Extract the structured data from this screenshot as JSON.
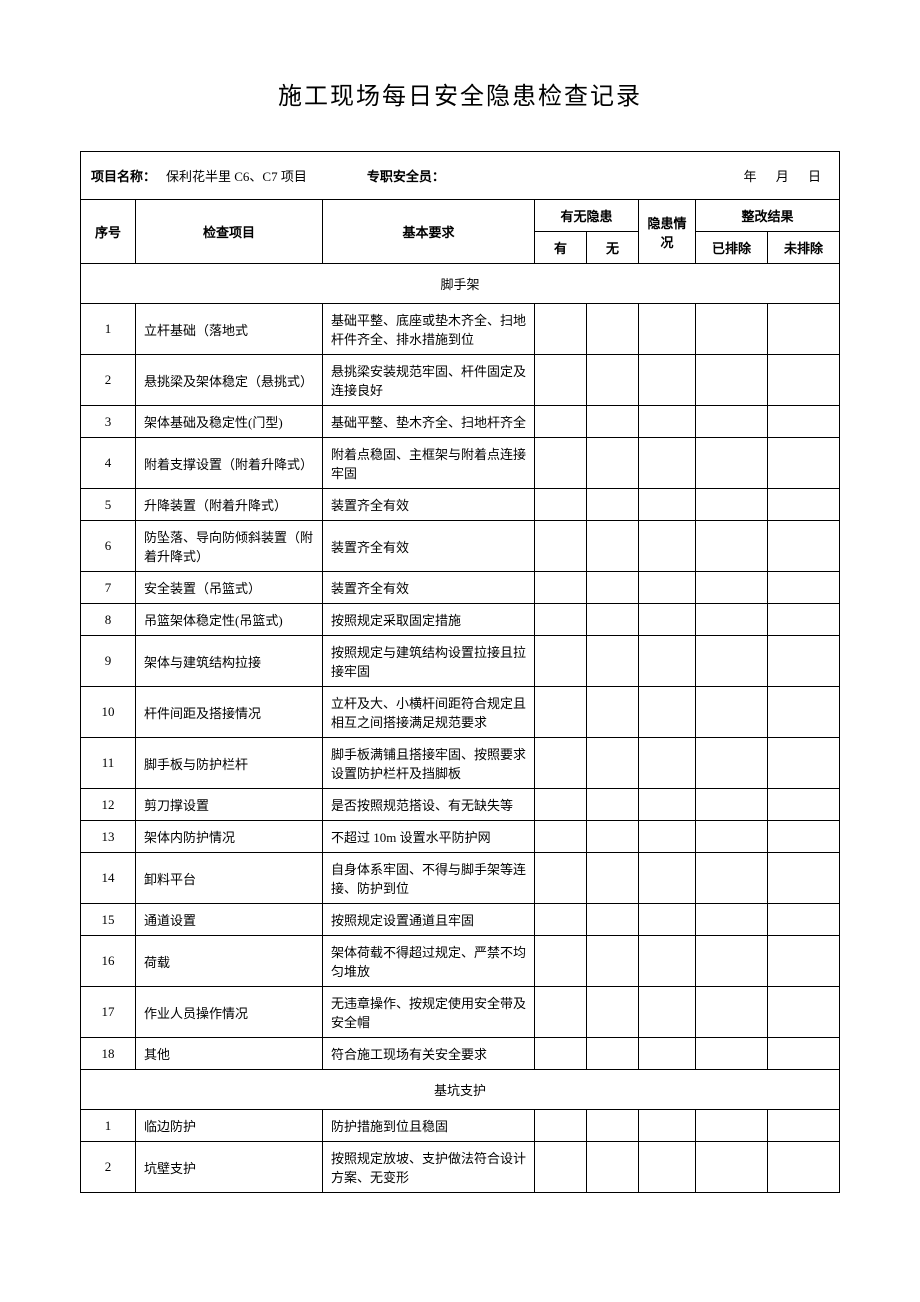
{
  "title": "施工现场每日安全隐患检查记录",
  "header": {
    "project_label": "项目名称：",
    "project_value": "保利花半里 C6、C7 项目",
    "safety_officer_label": "专职安全员：",
    "date_text": "年 月 日"
  },
  "columns": {
    "seq": "序号",
    "check_item": "检查项目",
    "basic_req": "基本要求",
    "hazard_presence": "有无隐患",
    "yes": "有",
    "no": "无",
    "status": "隐患情况",
    "result": "整改结果",
    "done": "已排除",
    "undone": "未排除"
  },
  "sections": [
    {
      "name": "脚手架",
      "rows": [
        {
          "seq": "1",
          "item": "立杆基础（落地式",
          "req": "基础平整、底座或垫木齐全、扫地杆件齐全、排水措施到位"
        },
        {
          "seq": "2",
          "item": "悬挑梁及架体稳定（悬挑式）",
          "req": "悬挑梁安装规范牢固、杆件固定及连接良好"
        },
        {
          "seq": "3",
          "item": "架体基础及稳定性(门型)",
          "req": "基础平整、垫木齐全、扫地杆齐全"
        },
        {
          "seq": "4",
          "item": "附着支撑设置（附着升降式）",
          "req": "附着点稳固、主框架与附着点连接牢固"
        },
        {
          "seq": "5",
          "item": "升降装置（附着升降式）",
          "req": "装置齐全有效"
        },
        {
          "seq": "6",
          "item": "防坠落、导向防倾斜装置（附着升降式）",
          "req": "装置齐全有效"
        },
        {
          "seq": "7",
          "item": "安全装置（吊篮式）",
          "req": "装置齐全有效"
        },
        {
          "seq": "8",
          "item": "吊篮架体稳定性(吊篮式)",
          "req": "按照规定采取固定措施"
        },
        {
          "seq": "9",
          "item": "架体与建筑结构拉接",
          "req": "按照规定与建筑结构设置拉接且拉接牢固"
        },
        {
          "seq": "10",
          "item": "杆件间距及搭接情况",
          "req": "立杆及大、小横杆间距符合规定且相互之间搭接满足规范要求"
        },
        {
          "seq": "11",
          "item": "脚手板与防护栏杆",
          "req": "脚手板满铺且搭接牢固、按照要求设置防护栏杆及挡脚板"
        },
        {
          "seq": "12",
          "item": "剪刀撑设置",
          "req": "是否按照规范搭设、有无缺失等"
        },
        {
          "seq": "13",
          "item": "架体内防护情况",
          "req": "不超过 10m 设置水平防护网"
        },
        {
          "seq": "14",
          "item": "卸料平台",
          "req": "自身体系牢固、不得与脚手架等连接、防护到位"
        },
        {
          "seq": "15",
          "item": "通道设置",
          "req": "按照规定设置通道且牢固"
        },
        {
          "seq": "16",
          "item": "荷载",
          "req": "架体荷载不得超过规定、严禁不均匀堆放"
        },
        {
          "seq": "17",
          "item": "作业人员操作情况",
          "req": "无违章操作、按规定使用安全带及安全帽"
        },
        {
          "seq": "18",
          "item": "其他",
          "req": "符合施工现场有关安全要求"
        }
      ]
    },
    {
      "name": "基坑支护",
      "rows": [
        {
          "seq": "1",
          "item": "临边防护",
          "req": "防护措施到位且稳固"
        },
        {
          "seq": "2",
          "item": "坑壁支护",
          "req": "按照规定放坡、支护做法符合设计方案、无变形"
        }
      ]
    }
  ]
}
